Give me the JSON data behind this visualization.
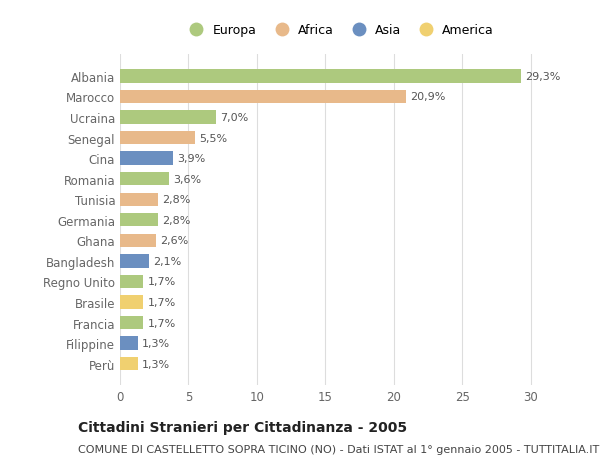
{
  "countries": [
    "Albania",
    "Marocco",
    "Ucraina",
    "Senegal",
    "Cina",
    "Romania",
    "Tunisia",
    "Germania",
    "Ghana",
    "Bangladesh",
    "Regno Unito",
    "Brasile",
    "Francia",
    "Filippine",
    "Perù"
  ],
  "values": [
    29.3,
    20.9,
    7.0,
    5.5,
    3.9,
    3.6,
    2.8,
    2.8,
    2.6,
    2.1,
    1.7,
    1.7,
    1.7,
    1.3,
    1.3
  ],
  "labels": [
    "29,3%",
    "20,9%",
    "7,0%",
    "5,5%",
    "3,9%",
    "3,6%",
    "2,8%",
    "2,8%",
    "2,6%",
    "2,1%",
    "1,7%",
    "1,7%",
    "1,7%",
    "1,3%",
    "1,3%"
  ],
  "categories": [
    "Europa",
    "Africa",
    "Asia",
    "America"
  ],
  "bar_colors": [
    "#adc97e",
    "#e8b98a",
    "#adc97e",
    "#e8b98a",
    "#6b8fc0",
    "#adc97e",
    "#e8b98a",
    "#adc97e",
    "#e8b98a",
    "#6b8fc0",
    "#adc97e",
    "#f0d070",
    "#adc97e",
    "#6b8fc0",
    "#f0d070"
  ],
  "legend_colors": [
    "#adc97e",
    "#e8b98a",
    "#6b8fc0",
    "#f0d070"
  ],
  "xlim": [
    0,
    32
  ],
  "xticks": [
    0,
    5,
    10,
    15,
    20,
    25,
    30
  ],
  "background_color": "#ffffff",
  "grid_color": "#dddddd",
  "title": "Cittadini Stranieri per Cittadinanza - 2005",
  "subtitle": "COMUNE DI CASTELLETTO SOPRA TICINO (NO) - Dati ISTAT al 1° gennaio 2005 - TUTTITALIA.IT",
  "title_fontsize": 10,
  "subtitle_fontsize": 8
}
